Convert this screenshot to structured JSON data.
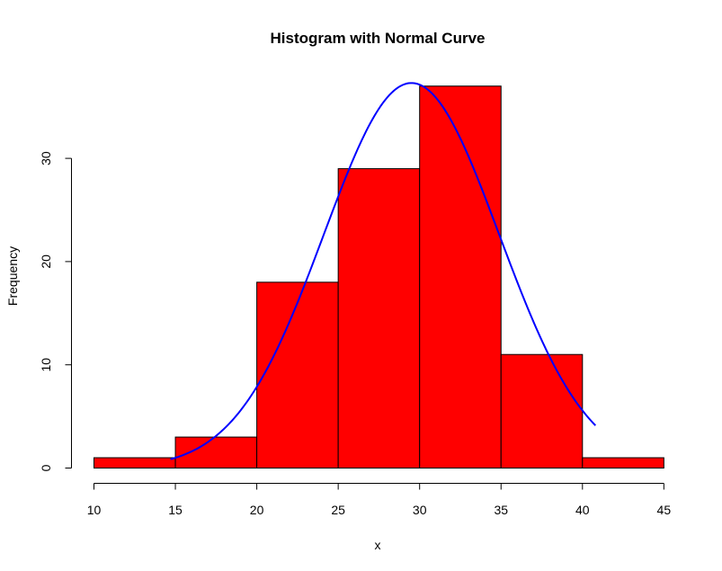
{
  "chart_data": {
    "type": "bar",
    "title": "Histogram with Normal Curve",
    "xlabel": "x",
    "ylabel": "Frequency",
    "bins": [
      {
        "from": 10,
        "to": 15,
        "count": 1
      },
      {
        "from": 15,
        "to": 20,
        "count": 3
      },
      {
        "from": 20,
        "to": 25,
        "count": 18
      },
      {
        "from": 25,
        "to": 30,
        "count": 29
      },
      {
        "from": 30,
        "to": 35,
        "count": 37
      },
      {
        "from": 35,
        "to": 40,
        "count": 11
      },
      {
        "from": 40,
        "to": 45,
        "count": 1
      }
    ],
    "xlim": [
      10,
      45
    ],
    "ylim": [
      0,
      37
    ],
    "x_ticks": [
      "10",
      "15",
      "20",
      "25",
      "30",
      "35",
      "40",
      "45"
    ],
    "y_ticks": [
      "0",
      "10",
      "20",
      "30"
    ],
    "normal_curve": {
      "color": "#0000ff",
      "peak_x": 29.5,
      "peak_y": 37.3,
      "x_range": [
        14.7,
        40.8
      ],
      "end_values": [
        0.9,
        4.0
      ]
    },
    "bar_color": "#ff0000",
    "grid": false
  }
}
